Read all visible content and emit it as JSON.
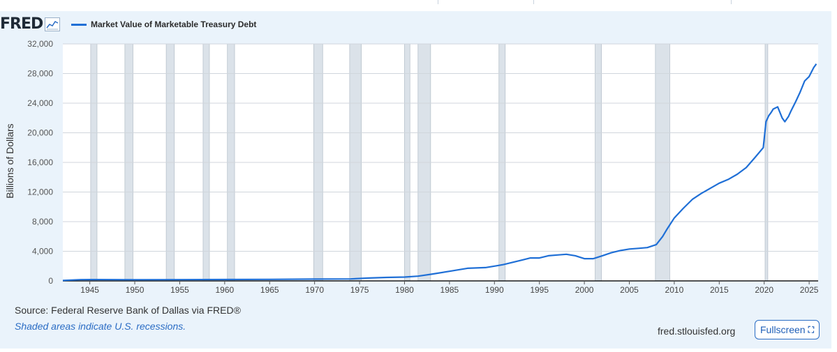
{
  "header": {
    "logo_text": "FRED",
    "logo_icon": "line-chart-icon"
  },
  "footer": {
    "source": "Source: Federal Reserve Bank of Dallas via FRED®",
    "note": "Shaded areas indicate U.S. recessions.",
    "url": "fred.stlouisfed.org",
    "fullscreen_label": "Fullscreen",
    "fullscreen_icon": "expand-icon"
  },
  "colors": {
    "series": "#1f6fd6",
    "recession": "#dbe2e9",
    "panel": "#eaf3fb",
    "grid": "#d0d6dc"
  },
  "chart_data": {
    "type": "line",
    "title": "",
    "xlabel": "",
    "ylabel": "Billions of Dollars",
    "xlim": [
      1942.0,
      2026.0
    ],
    "ylim": [
      0,
      32000
    ],
    "y_ticks": [
      0,
      4000,
      8000,
      12000,
      16000,
      20000,
      24000,
      28000,
      32000
    ],
    "y_tick_labels": [
      "0",
      "4,000",
      "8,000",
      "12,000",
      "16,000",
      "20,000",
      "24,000",
      "28,000",
      "32,000"
    ],
    "x_ticks": [
      1945,
      1950,
      1955,
      1960,
      1965,
      1970,
      1975,
      1980,
      1985,
      1990,
      1995,
      2000,
      2005,
      2010,
      2015,
      2020,
      2025
    ],
    "grid": true,
    "legend_position": "top-left",
    "recessions": [
      [
        1945.1,
        1945.8
      ],
      [
        1948.9,
        1949.8
      ],
      [
        1953.5,
        1954.4
      ],
      [
        1957.6,
        1958.3
      ],
      [
        1960.3,
        1961.1
      ],
      [
        1969.9,
        1970.9
      ],
      [
        1973.9,
        1975.2
      ],
      [
        1980.0,
        1980.6
      ],
      [
        1981.5,
        1982.9
      ],
      [
        1990.5,
        1991.2
      ],
      [
        2001.2,
        2001.9
      ],
      [
        2007.9,
        2009.5
      ],
      [
        2020.1,
        2020.4
      ]
    ],
    "series": [
      {
        "name": "Market Value of Marketable Treasury Debt",
        "x": [
          1942,
          1944,
          1946,
          1950,
          1955,
          1960,
          1965,
          1970,
          1974,
          1976,
          1978,
          1980,
          1981.5,
          1983,
          1985,
          1987,
          1989,
          1990,
          1991,
          1992,
          1993,
          1994,
          1995,
          1996,
          1997,
          1998,
          1999,
          2000,
          2001,
          2002,
          2003,
          2004,
          2005,
          2006,
          2007,
          2008,
          2008.7,
          2009.2,
          2010,
          2011,
          2012,
          2013,
          2014,
          2015,
          2016,
          2017,
          2018,
          2019,
          2019.9,
          2020.2,
          2020.5,
          2020.8,
          2021,
          2021.5,
          2022,
          2022.3,
          2022.7,
          2023,
          2023.5,
          2024,
          2024.5,
          2025,
          2025.5,
          2025.8
        ],
        "values": [
          70,
          170,
          180,
          160,
          170,
          190,
          210,
          240,
          260,
          390,
          470,
          520,
          640,
          900,
          1300,
          1700,
          1800,
          2000,
          2200,
          2500,
          2800,
          3100,
          3100,
          3400,
          3500,
          3600,
          3400,
          3000,
          3000,
          3400,
          3800,
          4100,
          4300,
          4400,
          4500,
          4900,
          6000,
          7000,
          8500,
          9800,
          11000,
          11800,
          12500,
          13200,
          13700,
          14400,
          15300,
          16700,
          18000,
          21500,
          22300,
          22800,
          23200,
          23500,
          22000,
          21500,
          22200,
          23000,
          24200,
          25500,
          27000,
          27600,
          28800,
          29300
        ]
      }
    ]
  }
}
